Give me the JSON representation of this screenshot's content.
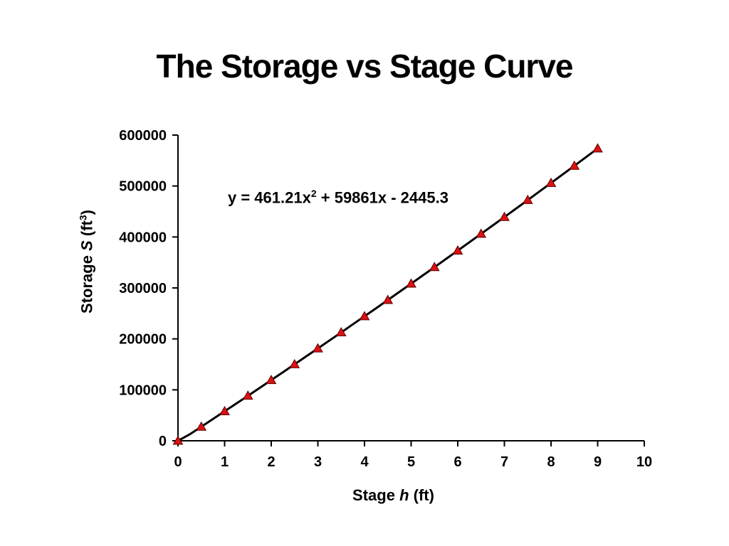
{
  "title": "The Storage vs Stage Curve",
  "equation": {
    "base": "y = 461.21x",
    "exponent": "2",
    "rest": " + 59861x - 2445.3"
  },
  "axis_labels": {
    "x": {
      "prefix": "Stage ",
      "variable": "h",
      "suffix": " (ft)"
    },
    "y": {
      "prefix": "Storage ",
      "variable": "S",
      "unit_prefix": " (ft",
      "unit_exponent": "3",
      "unit_suffix": ")"
    }
  },
  "chart_data": {
    "type": "scatter",
    "title": "The Storage vs Stage Curve",
    "xlabel": "Stage h (ft)",
    "ylabel": "Storage S (ft3)",
    "xlim": [
      0,
      10
    ],
    "ylim": [
      0,
      600000
    ],
    "xticks": [
      0,
      1,
      2,
      3,
      4,
      5,
      6,
      7,
      8,
      9,
      10
    ],
    "yticks": [
      0,
      100000,
      200000,
      300000,
      400000,
      500000,
      600000
    ],
    "grid": false,
    "legend": false,
    "x": [
      0,
      0.5,
      1,
      1.5,
      2,
      2.5,
      3,
      3.5,
      4,
      4.5,
      5,
      5.5,
      6,
      6.5,
      7,
      7.5,
      8,
      8.5,
      9
    ],
    "series": [
      {
        "name": "Storage",
        "values": [
          0,
          27601,
          57877,
          88384,
          119122,
          150090,
          181289,
          212718,
          244378,
          276269,
          308390,
          340742,
          373324,
          406137,
          439181,
          472455,
          505960,
          539696,
          573662
        ]
      }
    ],
    "trendline": {
      "equation": "y = 461.21x^2 + 59861x - 2445.3",
      "a": 461.21,
      "b": 59861,
      "c": -2445.3,
      "x_range": [
        0,
        9
      ],
      "color": "#000000",
      "width": 3
    },
    "marker": "triangle",
    "marker_fill": "#dd1111",
    "marker_stroke": "#5a0000",
    "axis_color": "#000000"
  }
}
